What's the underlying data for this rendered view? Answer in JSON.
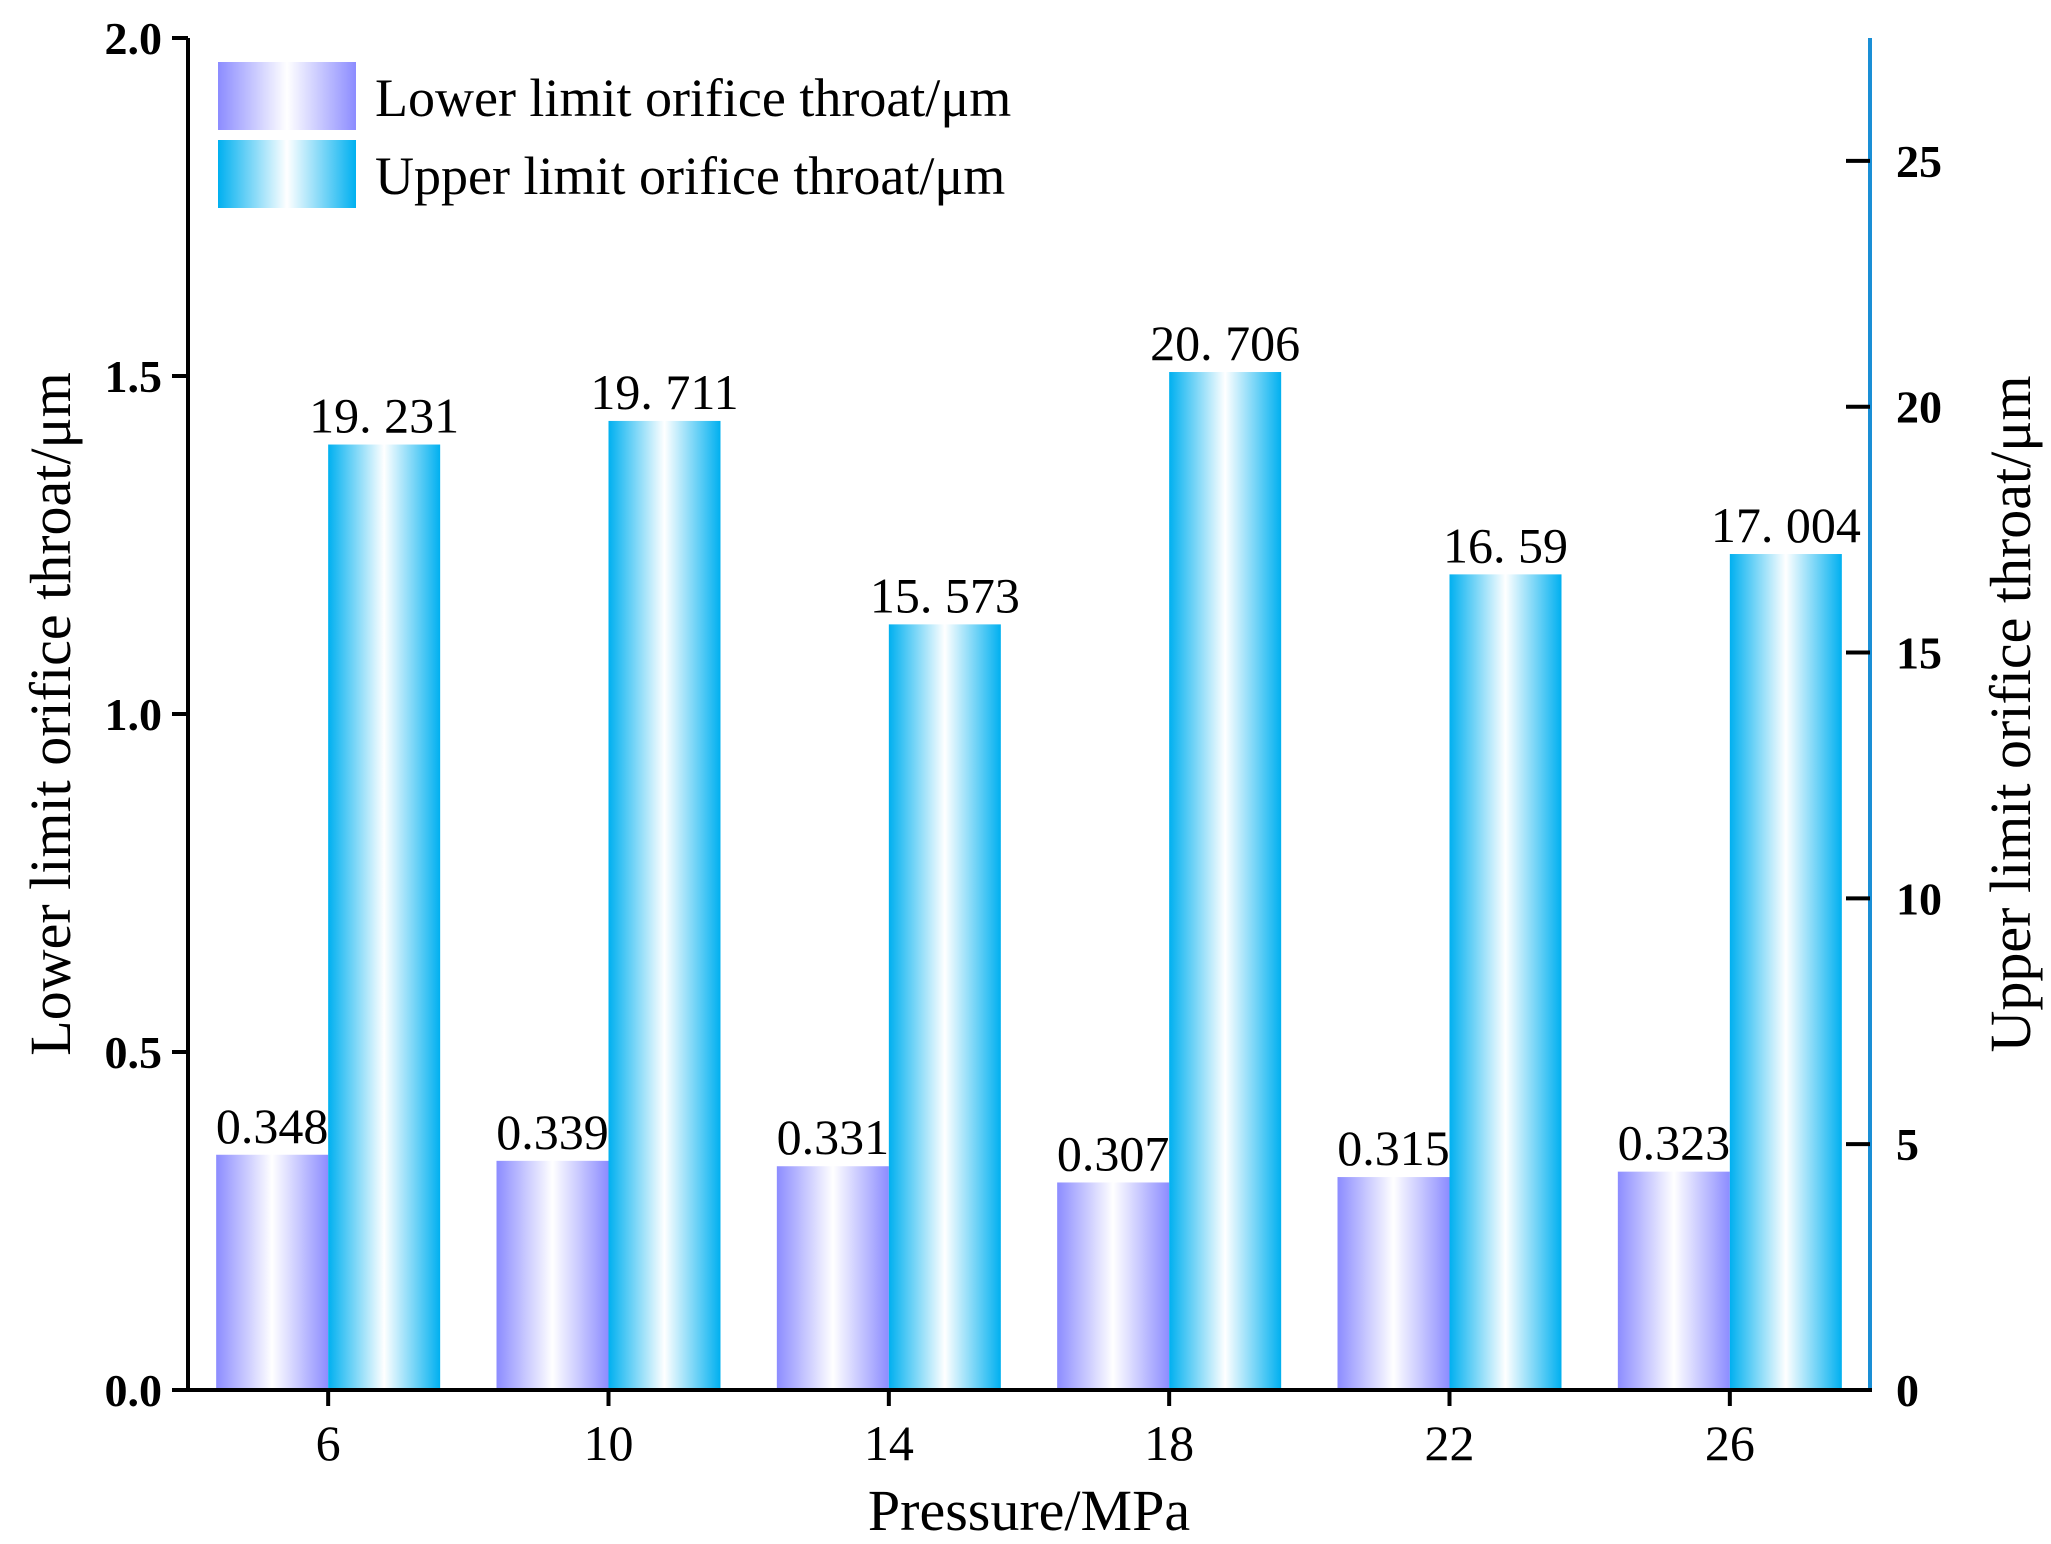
{
  "chart_data": {
    "type": "bar",
    "categories": [
      "6",
      "10",
      "14",
      "18",
      "22",
      "26"
    ],
    "xlabel": "Pressure/MPa",
    "ylabel_left": "Lower limit orifice throat/μm",
    "ylabel_right": "Upper limit orifice throat/μm",
    "ylim_left": [
      0,
      2.0
    ],
    "ylim_right": [
      0,
      27.5
    ],
    "yticks_left": [
      "0.0",
      "0.5",
      "1.0",
      "1.5",
      "2.0"
    ],
    "yticks_right": [
      "0",
      "5",
      "10",
      "15",
      "20",
      "25"
    ],
    "grid": false,
    "legend_position": "top-left",
    "series": [
      {
        "name": "Lower limit orifice throat/μm",
        "axis": "left",
        "values": [
          0.348,
          0.339,
          0.331,
          0.307,
          0.315,
          0.323
        ],
        "labels": [
          "0.348",
          "0.339",
          "0.331",
          "0.307",
          "0.315",
          "0.323"
        ],
        "color_edge": "#8c8cff",
        "color_center": "#ffffff"
      },
      {
        "name": "Upper limit orifice throat/μm",
        "axis": "right",
        "values": [
          19.231,
          19.711,
          15.573,
          20.706,
          16.59,
          17.004
        ],
        "labels": [
          "19. 231",
          "19. 711",
          "15. 573",
          "20. 706",
          "16. 59",
          "17. 004"
        ],
        "color_edge": "#00b0f0",
        "color_center": "#ffffff"
      }
    ],
    "colors": {
      "axis": "#000000",
      "right_axis": "#1a8fd6"
    }
  }
}
